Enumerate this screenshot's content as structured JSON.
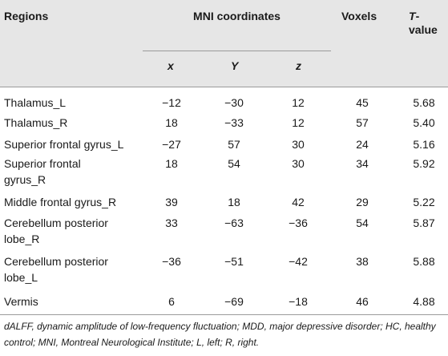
{
  "table": {
    "headers": {
      "regions": "Regions",
      "mni": "MNI coordinates",
      "voxels": "Voxels",
      "tvalue": "T-value",
      "tvalue_t": "T",
      "tvalue_rest": "-",
      "tvalue_line2": "value",
      "x": "x",
      "y": "Y",
      "z": "z"
    },
    "rows": [
      {
        "region": "Thalamus_L",
        "x": "−12",
        "y": "−30",
        "z": "12",
        "voxels": "45",
        "t": "5.68"
      },
      {
        "region": "Thalamus_R",
        "x": "18",
        "y": "−33",
        "z": "12",
        "voxels": "57",
        "t": "5.40"
      },
      {
        "region": "Superior frontal gyrus_L",
        "x": "−27",
        "y": "57",
        "z": "30",
        "voxels": "24",
        "t": "5.16"
      },
      {
        "region": "Superior frontal gyrus_R",
        "x": "18",
        "y": "54",
        "z": "30",
        "voxels": "34",
        "t": "5.92"
      },
      {
        "region": "Middle frontal gyrus_R",
        "x": "39",
        "y": "18",
        "z": "42",
        "voxels": "29",
        "t": "5.22"
      },
      {
        "region": "Cerebellum posterior lobe_R",
        "x": "33",
        "y": "−63",
        "z": "−36",
        "voxels": "54",
        "t": "5.87"
      },
      {
        "region": "Cerebellum posterior lobe_L",
        "x": "−36",
        "y": "−51",
        "z": "−42",
        "voxels": "38",
        "t": "5.88"
      },
      {
        "region": "Vermis",
        "x": "6",
        "y": "−69",
        "z": "−18",
        "voxels": "46",
        "t": "4.88"
      }
    ],
    "footnote": "dALFF, dynamic amplitude of low-frequency fluctuation; MDD, major depressive disorder; HC, healthy control; MNI, Montreal Neurological Institute; L, left; R, right."
  }
}
